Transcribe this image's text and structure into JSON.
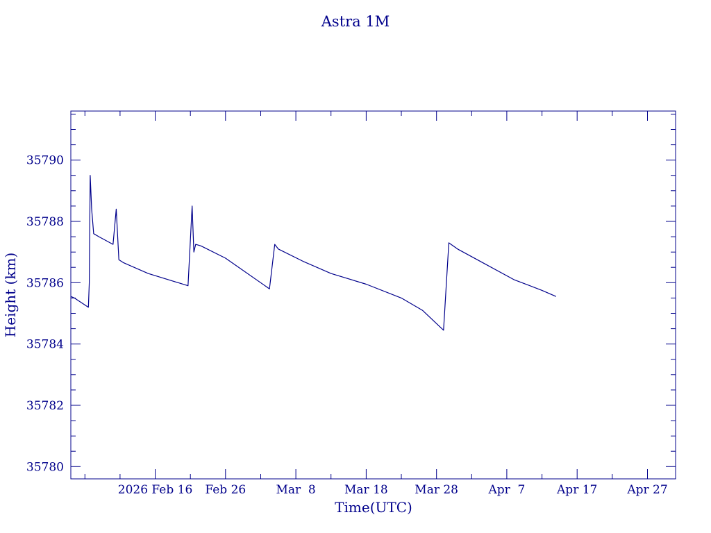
{
  "chart_data": {
    "type": "line",
    "title": "Astra 1M",
    "xlabel": "Time(UTC)",
    "ylabel": "Height (km)",
    "color": "#00008b",
    "x_unit": "date",
    "xlim": [
      "2026-02-04",
      "2026-05-01"
    ],
    "ylim": [
      35779.6,
      35791.6
    ],
    "x_ticks": [
      {
        "date": "2026-02-16",
        "label": "2026 Feb 16"
      },
      {
        "date": "2026-02-26",
        "label": "Feb 26"
      },
      {
        "date": "2026-03-08",
        "label": "Mar  8"
      },
      {
        "date": "2026-03-18",
        "label": "Mar 18"
      },
      {
        "date": "2026-03-28",
        "label": "Mar 28"
      },
      {
        "date": "2026-04-07",
        "label": "Apr  7"
      },
      {
        "date": "2026-04-17",
        "label": "Apr 17"
      },
      {
        "date": "2026-04-27",
        "label": "Apr 27"
      }
    ],
    "y_ticks": [
      35780,
      35782,
      35784,
      35786,
      35788,
      35790
    ],
    "grid": false,
    "series": [
      {
        "points": [
          [
            "2026-02-04 00:00",
            35785.55
          ],
          [
            "2026-02-04 12:00",
            35785.5
          ],
          [
            "2026-02-06 12:00",
            35785.2
          ],
          [
            "2026-02-06 15:00",
            35786.0
          ],
          [
            "2026-02-06 18:00",
            35789.5
          ],
          [
            "2026-02-06 23:00",
            35788.4
          ],
          [
            "2026-02-07 06:00",
            35787.6
          ],
          [
            "2026-02-08 00:00",
            35787.5
          ],
          [
            "2026-02-10 00:00",
            35787.25
          ],
          [
            "2026-02-10 11:00",
            35788.4
          ],
          [
            "2026-02-10 20:00",
            35786.75
          ],
          [
            "2026-02-11 12:00",
            35786.65
          ],
          [
            "2026-02-15 00:00",
            35786.3
          ],
          [
            "2026-02-20 16:00",
            35785.9
          ],
          [
            "2026-02-21 06:00",
            35788.5
          ],
          [
            "2026-02-21 12:00",
            35787.0
          ],
          [
            "2026-02-21 18:00",
            35787.25
          ],
          [
            "2026-02-22 12:00",
            35787.2
          ],
          [
            "2026-02-26 00:00",
            35786.8
          ],
          [
            "2026-03-04 06:00",
            35785.8
          ],
          [
            "2026-03-05 00:00",
            35787.25
          ],
          [
            "2026-03-05 12:00",
            35787.1
          ],
          [
            "2026-03-09 00:00",
            35786.7
          ],
          [
            "2026-03-13 00:00",
            35786.3
          ],
          [
            "2026-03-18 00:00",
            35785.95
          ],
          [
            "2026-03-23 00:00",
            35785.5
          ],
          [
            "2026-03-26 00:00",
            35785.1
          ],
          [
            "2026-03-29 00:00",
            35784.45
          ],
          [
            "2026-03-29 18:00",
            35787.3
          ],
          [
            "2026-03-31 00:00",
            35787.1
          ],
          [
            "2026-04-04 00:00",
            35786.6
          ],
          [
            "2026-04-08 00:00",
            35786.1
          ],
          [
            "2026-04-12 00:00",
            35785.75
          ],
          [
            "2026-04-14 00:00",
            35785.55
          ]
        ]
      }
    ]
  }
}
